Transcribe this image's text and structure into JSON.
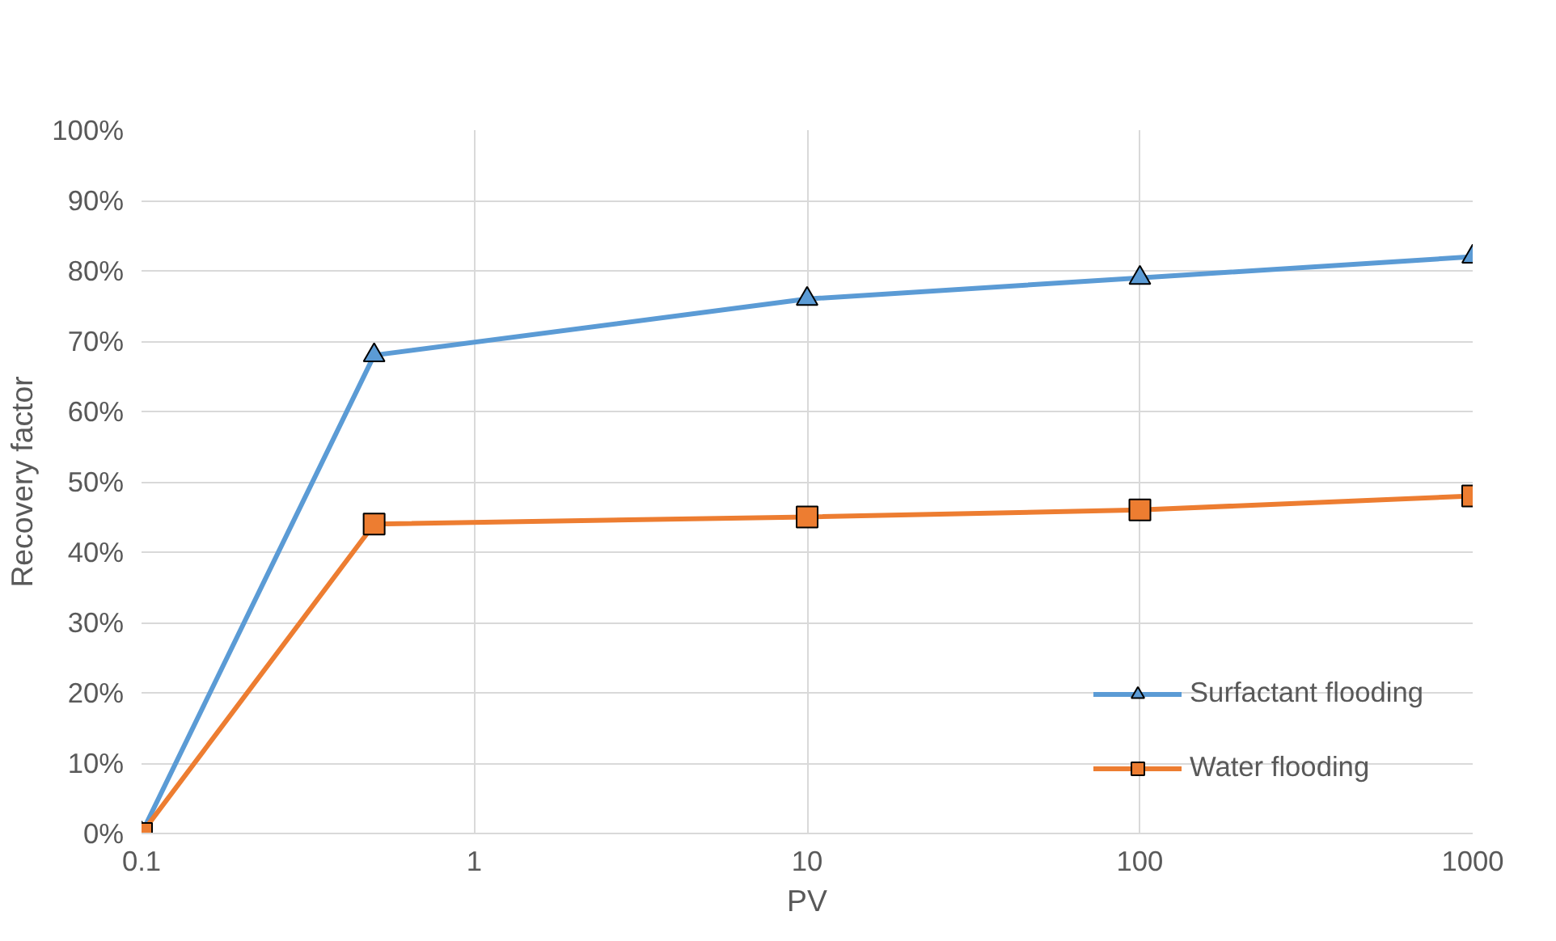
{
  "chart_data": {
    "type": "line",
    "xlabel": "PV",
    "ylabel": "Recovery factor",
    "x": [
      0.1,
      0.5,
      10,
      100,
      1000
    ],
    "series": [
      {
        "name": "Surfactant flooding",
        "color": "#5b9bd5",
        "marker": "triangle",
        "values": [
          0,
          68,
          76,
          79,
          82
        ]
      },
      {
        "name": "Water flooding",
        "color": "#ed7d31",
        "marker": "square",
        "values": [
          0,
          44,
          45,
          46,
          48
        ]
      }
    ],
    "log": "x",
    "xlim": [
      0.1,
      1000
    ],
    "xticks": [
      0.1,
      1,
      10,
      100,
      1000
    ],
    "ylim": [
      0,
      100
    ],
    "yticks": [
      {
        "value": 0,
        "label": "0%"
      },
      {
        "value": 10,
        "label": "10%"
      },
      {
        "value": 20,
        "label": "20%"
      },
      {
        "value": 30,
        "label": "30%"
      },
      {
        "value": 40,
        "label": "40%"
      },
      {
        "value": 50,
        "label": "50%"
      },
      {
        "value": 60,
        "label": "60%"
      },
      {
        "value": 70,
        "label": "70%"
      },
      {
        "value": 80,
        "label": "80%"
      },
      {
        "value": 90,
        "label": "90%"
      },
      {
        "value": 100,
        "label": "100%"
      }
    ],
    "grid": true,
    "legend": "bottom right",
    "line_style": "solid"
  }
}
